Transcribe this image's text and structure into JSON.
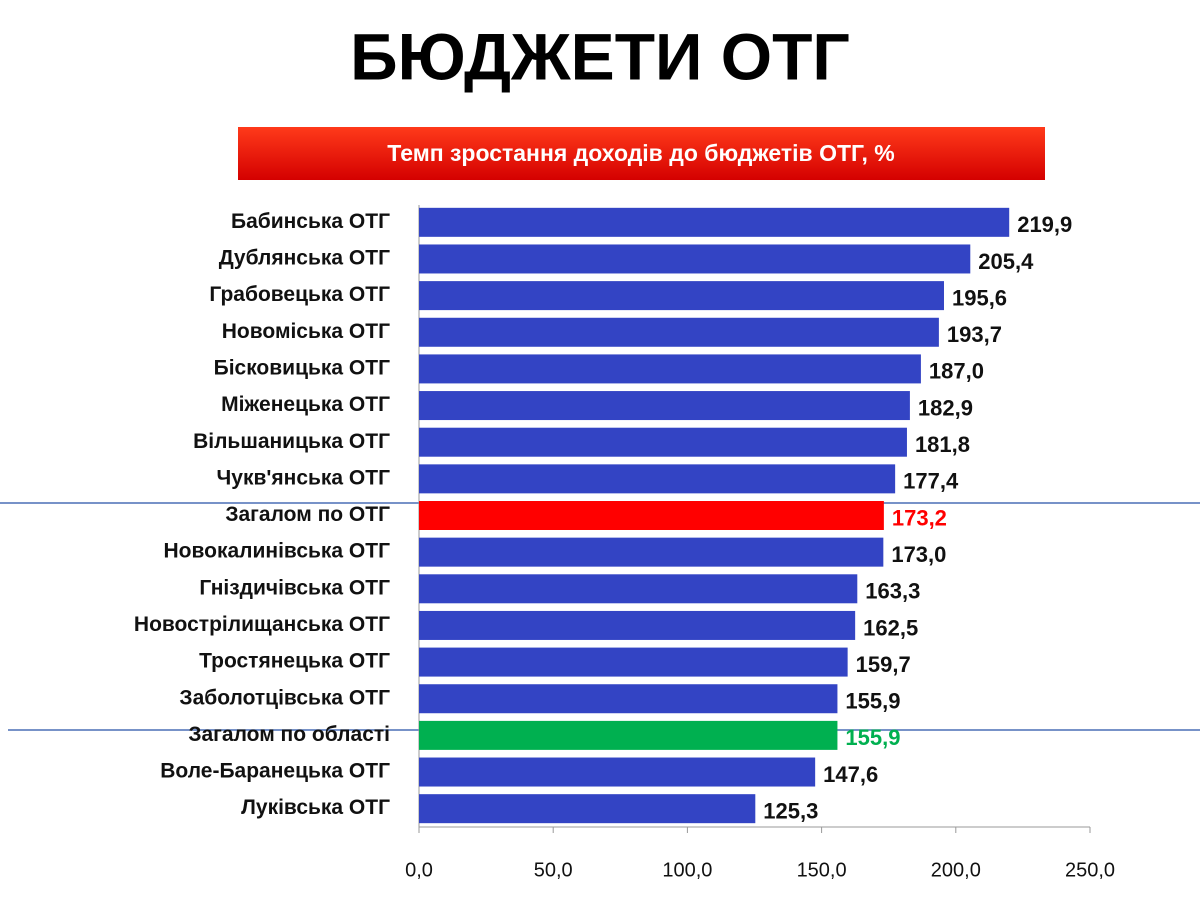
{
  "chart_data": {
    "type": "hbar",
    "title": "БЮДЖЕТИ ОТГ",
    "subtitle": "Темп зростання доходів до бюджетів ОТГ, %",
    "categories": [
      "Бабинська ОТГ",
      "Дублянська ОТГ",
      "Грабовецька ОТГ",
      "Новоміська ОТГ",
      "Бісковицька ОТГ",
      "Міженецька ОТГ",
      "Вільшаницька ОТГ",
      "Чукв'янська ОТГ",
      "Загалом по ОТГ",
      "Новокалинівська ОТГ",
      "Гніздичівська ОТГ",
      "Новострілищанська ОТГ",
      "Тростянецька ОТГ",
      "Заболотцівська ОТГ",
      "Загалом по області",
      "Воле-Баранецька ОТГ",
      "Луківська ОТГ"
    ],
    "values": [
      219.9,
      205.4,
      195.6,
      193.7,
      187.0,
      182.9,
      181.8,
      177.4,
      173.2,
      173.0,
      163.3,
      162.5,
      159.7,
      155.9,
      155.9,
      147.6,
      125.3
    ],
    "value_labels": [
      "219,9",
      "205,4",
      "195,6",
      "193,7",
      "187,0",
      "182,9",
      "181,8",
      "177,4",
      "173,2",
      "173,0",
      "163,3",
      "162,5",
      "159,7",
      "155,9",
      "155,9",
      "147,6",
      "125,3"
    ],
    "colors": [
      "#3344c4",
      "#3344c4",
      "#3344c4",
      "#3344c4",
      "#3344c4",
      "#3344c4",
      "#3344c4",
      "#3344c4",
      "#ff0000",
      "#3344c4",
      "#3344c4",
      "#3344c4",
      "#3344c4",
      "#3344c4",
      "#00b050",
      "#3344c4",
      "#3344c4"
    ],
    "value_label_colors": [
      "#111111",
      "#111111",
      "#111111",
      "#111111",
      "#111111",
      "#111111",
      "#111111",
      "#111111",
      "#ff0000",
      "#111111",
      "#111111",
      "#111111",
      "#111111",
      "#111111",
      "#00b050",
      "#111111",
      "#111111"
    ],
    "xlim": [
      0,
      250
    ],
    "xticks": [
      {
        "value": 0,
        "label": "0,0"
      },
      {
        "value": 50,
        "label": "50,0"
      },
      {
        "value": 100,
        "label": "100,0"
      },
      {
        "value": 150,
        "label": "150,0"
      },
      {
        "value": 200,
        "label": "200,0"
      },
      {
        "value": 250,
        "label": "250,0"
      }
    ]
  }
}
